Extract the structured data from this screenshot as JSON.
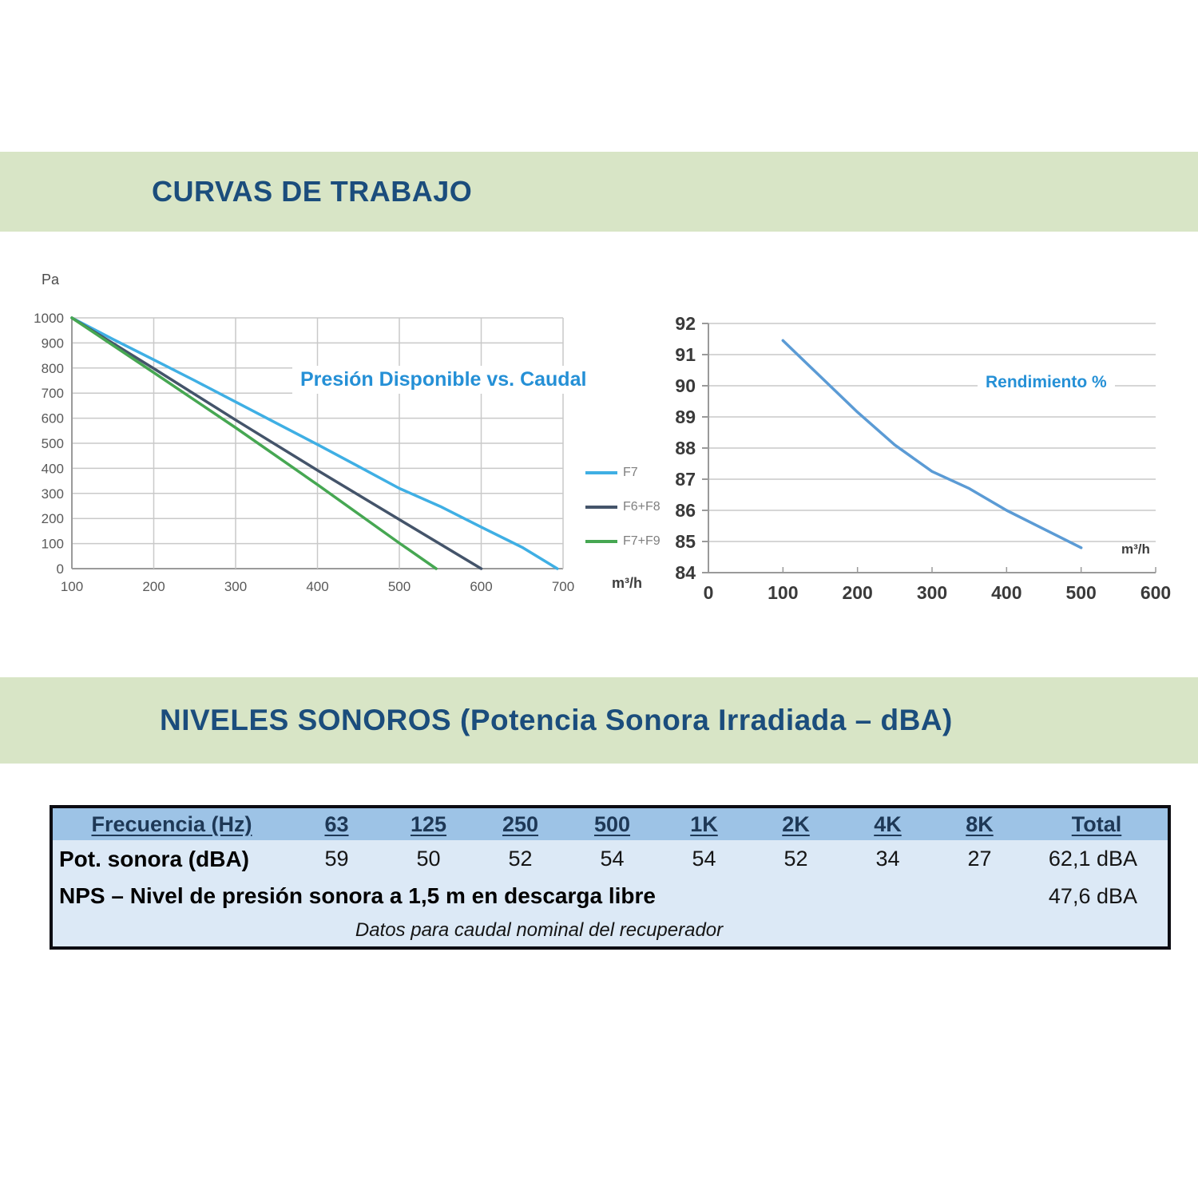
{
  "page": {
    "section1_title": "CURVAS DE TRABAJO",
    "section2_title": "NIVELES SONOROS (Potencia Sonora Irradiada – dBA)"
  },
  "colors": {
    "banner_bg": "#d8e5c6",
    "banner_text": "#1b4d7c",
    "chart_title_blue": "#2590d6",
    "grid": "#c9c9c9",
    "axis": "#9a9a9a",
    "table_header_bg": "#9dc3e6",
    "table_body_bg": "#dce9f6",
    "table_border": "#0c0c12"
  },
  "chart_data": [
    {
      "type": "line",
      "title": "Presión Disponible vs. Caudal",
      "ylabel": "Pa",
      "xlabel": "m³/h",
      "xlim": [
        100,
        700
      ],
      "ylim": [
        0,
        1000
      ],
      "xticks": [
        100,
        200,
        300,
        400,
        500,
        600,
        700
      ],
      "yticks": [
        0,
        100,
        200,
        300,
        400,
        500,
        600,
        700,
        800,
        900,
        1000
      ],
      "grid": "both",
      "legend_position": "right-outside",
      "series": [
        {
          "name": "F7",
          "color": "#3fafe4",
          "points": [
            [
              100,
              1000
            ],
            [
              150,
              915
            ],
            [
              200,
              833
            ],
            [
              250,
              750
            ],
            [
              300,
              665
            ],
            [
              350,
              580
            ],
            [
              400,
              495
            ],
            [
              450,
              408
            ],
            [
              500,
              320
            ],
            [
              550,
              248
            ],
            [
              600,
              166
            ],
            [
              650,
              85
            ],
            [
              693,
              0
            ]
          ]
        },
        {
          "name": "F6+F8",
          "color": "#44546a",
          "points": [
            [
              100,
              1000
            ],
            [
              200,
              798
            ],
            [
              300,
              593
            ],
            [
              400,
              392
            ],
            [
              500,
              196
            ],
            [
              600,
              0
            ]
          ]
        },
        {
          "name": "F7+F9",
          "color": "#46a752",
          "points": [
            [
              100,
              1000
            ],
            [
              200,
              782
            ],
            [
              300,
              562
            ],
            [
              400,
              335
            ],
            [
              500,
              102
            ],
            [
              545,
              0
            ]
          ]
        }
      ]
    },
    {
      "type": "line",
      "title": "Rendimiento %",
      "ylabel": "",
      "xlabel": "m³/h",
      "xlim": [
        0,
        600
      ],
      "ylim": [
        84,
        92
      ],
      "xticks": [
        0,
        100,
        200,
        300,
        400,
        500,
        600
      ],
      "yticks": [
        84,
        85,
        86,
        87,
        88,
        89,
        90,
        91,
        92
      ],
      "grid": "horizontal",
      "legend_position": "none",
      "series": [
        {
          "name": "Rendimiento %",
          "color": "#5b9bd5",
          "points": [
            [
              100,
              91.45
            ],
            [
              150,
              90.3
            ],
            [
              200,
              89.15
            ],
            [
              250,
              88.1
            ],
            [
              300,
              87.25
            ],
            [
              350,
              86.7
            ],
            [
              400,
              86.0
            ],
            [
              450,
              85.4
            ],
            [
              500,
              84.8
            ]
          ]
        }
      ]
    }
  ],
  "table": {
    "header": [
      "Frecuencia (Hz)",
      "63",
      "125",
      "250",
      "500",
      "1K",
      "2K",
      "4K",
      "8K",
      "Total"
    ],
    "row_pot": {
      "label": "Pot. sonora (dBA)",
      "values": [
        "59",
        "50",
        "52",
        "54",
        "54",
        "52",
        "34",
        "27"
      ],
      "total": "62,1 dBA"
    },
    "row_nps": {
      "label": "NPS – Nivel de presión sonora a 1,5 m en descarga libre",
      "total": "47,6 dBA"
    },
    "footnote": "Datos para caudal nominal del recuperador"
  }
}
